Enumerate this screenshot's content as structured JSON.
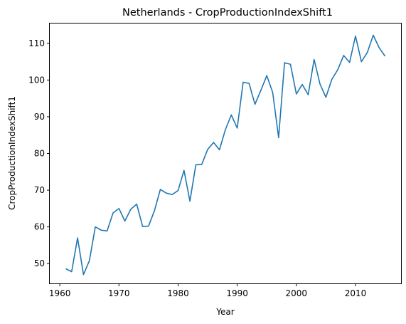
{
  "chart_data": {
    "type": "line",
    "title": "Netherlands - CropProductionIndexShift1",
    "xlabel": "Year",
    "ylabel": "CropProductionIndexShift1",
    "xlim": [
      1958.3,
      2017.7
    ],
    "ylim": [
      44.6,
      115.4
    ],
    "xticks": [
      1960,
      1970,
      1980,
      1990,
      2000,
      2010
    ],
    "yticks": [
      50,
      60,
      70,
      80,
      90,
      100,
      110
    ],
    "grid": false,
    "legend": "none",
    "series": [
      {
        "color": "#1f77b4",
        "x": [
          1961,
          1962,
          1963,
          1964,
          1965,
          1966,
          1967,
          1968,
          1969,
          1970,
          1971,
          1972,
          1973,
          1974,
          1975,
          1976,
          1977,
          1978,
          1979,
          1980,
          1981,
          1982,
          1983,
          1984,
          1985,
          1986,
          1987,
          1988,
          1989,
          1990,
          1991,
          1992,
          1993,
          1994,
          1995,
          1996,
          1997,
          1998,
          1999,
          2000,
          2001,
          2002,
          2003,
          2004,
          2005,
          2006,
          2007,
          2008,
          2009,
          2010,
          2011,
          2012,
          2013,
          2014,
          2015
        ],
        "y": [
          48.6,
          47.8,
          57.0,
          47.0,
          50.8,
          60.0,
          59.1,
          58.9,
          63.8,
          65.0,
          61.6,
          64.8,
          66.2,
          60.1,
          60.2,
          64.4,
          70.2,
          69.2,
          68.8,
          69.9,
          75.4,
          67.0,
          76.9,
          77.0,
          81.1,
          83.0,
          81.0,
          86.5,
          90.5,
          86.9,
          99.4,
          99.1,
          93.4,
          97.2,
          101.2,
          96.6,
          84.3,
          104.7,
          104.3,
          96.2,
          98.8,
          96.0,
          105.6,
          98.9,
          95.3,
          100.2,
          102.8,
          106.7,
          104.8,
          112.0,
          105.0,
          107.5,
          112.2,
          108.8,
          106.5
        ]
      }
    ]
  }
}
